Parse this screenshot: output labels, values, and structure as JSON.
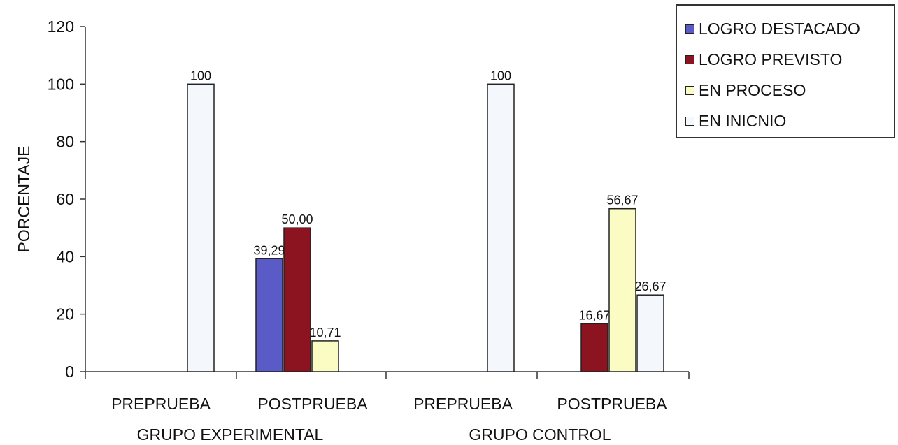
{
  "chart_data": {
    "type": "bar",
    "ylabel": "PORCENTAJE",
    "xlabel": "",
    "ylim": [
      0,
      120
    ],
    "yticks": [
      0,
      20,
      40,
      60,
      80,
      100,
      120
    ],
    "grid": false,
    "legend_position": "top-right",
    "groups": [
      {
        "label": "GRUPO EXPERIMENTAL",
        "categories": [
          {
            "label": "PREPRUEBA",
            "bars": [
              {
                "series": "EN INICNIO",
                "value": 100,
                "label": "100"
              }
            ]
          },
          {
            "label": "POSTPRUEBA",
            "bars": [
              {
                "series": "LOGRO DESTACADO",
                "value": 39.29,
                "label": "39,29"
              },
              {
                "series": "LOGRO PREVISTO",
                "value": 50.0,
                "label": "50,00"
              },
              {
                "series": "EN PROCESO",
                "value": 10.71,
                "label": "10,71"
              }
            ]
          }
        ]
      },
      {
        "label": "GRUPO CONTROL",
        "categories": [
          {
            "label": "PREPRUEBA",
            "bars": [
              {
                "series": "EN INICNIO",
                "value": 100,
                "label": "100"
              }
            ]
          },
          {
            "label": "POSTPRUEBA",
            "bars": [
              {
                "series": "LOGRO PREVISTO",
                "value": 16.67,
                "label": "16,67"
              },
              {
                "series": "EN PROCESO",
                "value": 56.67,
                "label": "56,67"
              },
              {
                "series": "EN INICNIO",
                "value": 26.67,
                "label": "26,67"
              }
            ]
          }
        ]
      }
    ],
    "series": [
      {
        "name": "LOGRO DESTACADO",
        "color": "#5b5bc8"
      },
      {
        "name": "LOGRO PREVISTO",
        "color": "#8b1420"
      },
      {
        "name": "EN PROCESO",
        "color": "#fbfbc4"
      },
      {
        "name": "EN INICNIO",
        "color": "#f4f8fc"
      }
    ]
  }
}
